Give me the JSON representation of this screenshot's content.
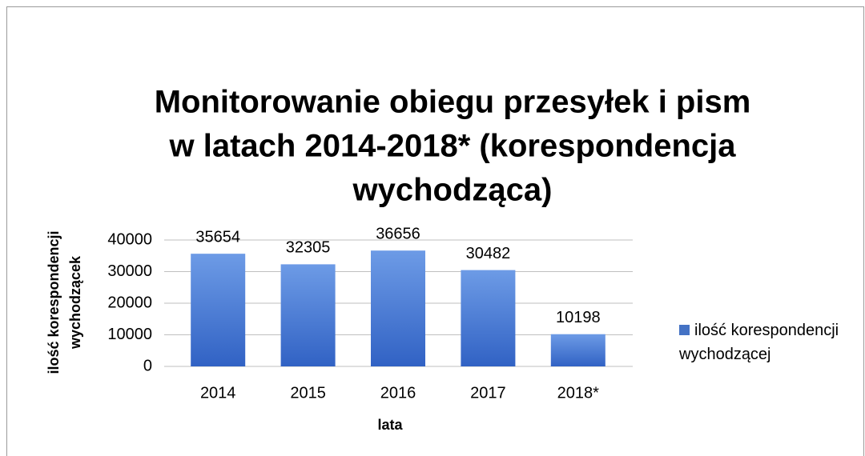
{
  "chart_data": {
    "type": "bar",
    "title": [
      "Monitorowanie obiegu przesyłek i pism",
      "w latach 2014-2018* (korespondencja",
      "wychodząca)"
    ],
    "y_label": [
      "ilość korespondencji",
      "wychodzącek"
    ],
    "x_label": "lata",
    "categories": [
      "2014",
      "2015",
      "2016",
      "2017",
      "2018*"
    ],
    "series": [
      {
        "name": "ilość korespondencji wychodzącej",
        "color": "#4472c4",
        "values": [
          35654,
          32305,
          36656,
          30482,
          10198
        ]
      }
    ],
    "ylim": [
      0,
      40000
    ],
    "yticks": [
      0,
      10000,
      20000,
      30000,
      40000
    ],
    "grid": true,
    "legend": "right"
  }
}
